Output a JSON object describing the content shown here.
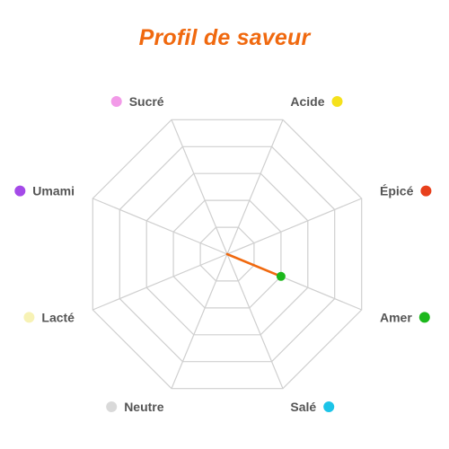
{
  "chart_data": {
    "type": "radar",
    "title": "Profil de saveur",
    "axes": [
      {
        "label": "Acide",
        "color": "#f5e11c"
      },
      {
        "label": "Épicé",
        "color": "#e8401c"
      },
      {
        "label": "Amer",
        "color": "#1cb81c"
      },
      {
        "label": "Salé",
        "color": "#1cc4e8"
      },
      {
        "label": "Neutre",
        "color": "#d9d9d9"
      },
      {
        "label": "Lacté",
        "color": "#f7f2b5"
      },
      {
        "label": "Umami",
        "color": "#a44ae8"
      },
      {
        "label": "Sucré",
        "color": "#f29ae8"
      }
    ],
    "rlim": [
      0,
      5
    ],
    "grid_levels": 5,
    "series": [
      {
        "color": "#f0690f",
        "values": [
          0,
          0,
          2,
          0,
          0,
          0,
          0,
          0
        ]
      }
    ],
    "highlight": {
      "axis": "Amer",
      "value": 2,
      "color": "#1cb81c"
    }
  }
}
